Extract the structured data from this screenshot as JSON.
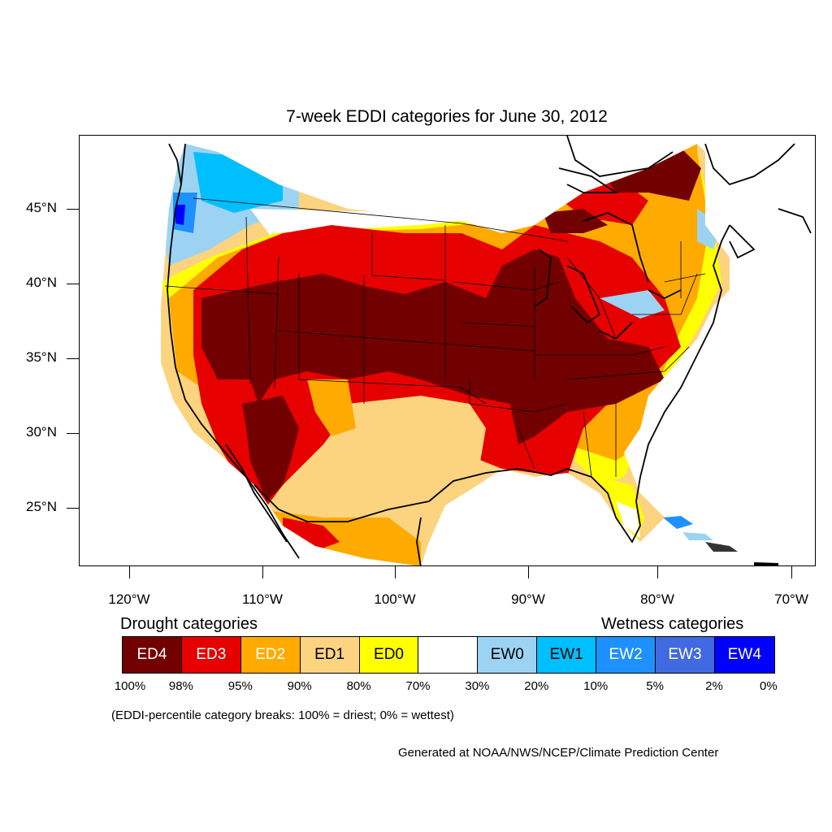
{
  "title": "7-week EDDI categories for June 30, 2012",
  "map": {
    "lat_labels": [
      "45°N",
      "40°N",
      "35°N",
      "30°N",
      "25°N"
    ],
    "lon_labels": [
      "120°W",
      "110°W",
      "100°W",
      "90°W",
      "80°W",
      "70°W"
    ]
  },
  "legend": {
    "drought_heading": "Drought categories",
    "wetness_heading": "Wetness categories",
    "categories": [
      {
        "label": "ED4",
        "color": "#730000",
        "text_color": "#ffffff"
      },
      {
        "label": "ED3",
        "color": "#e60000",
        "text_color": "#ffffff"
      },
      {
        "label": "ED2",
        "color": "#ffaa00",
        "text_color": "#ffffff"
      },
      {
        "label": "ED1",
        "color": "#fcd37f",
        "text_color": "#000000"
      },
      {
        "label": "ED0",
        "color": "#ffff00",
        "text_color": "#000000"
      },
      {
        "label": "",
        "color": "#ffffff",
        "text_color": "#000000"
      },
      {
        "label": "EW0",
        "color": "#9dd3f2",
        "text_color": "#000000"
      },
      {
        "label": "EW1",
        "color": "#00bfff",
        "text_color": "#000000"
      },
      {
        "label": "EW2",
        "color": "#1e90ff",
        "text_color": "#ffffff"
      },
      {
        "label": "EW3",
        "color": "#4169e1",
        "text_color": "#ffffff"
      },
      {
        "label": "EW4",
        "color": "#0000ff",
        "text_color": "#ffffff"
      }
    ],
    "breaks": [
      "100%",
      "98%",
      "95%",
      "90%",
      "80%",
      "70%",
      "30%",
      "20%",
      "10%",
      "5%",
      "2%",
      "0%"
    ]
  },
  "note": "(EDDI-percentile category breaks: 100% = driest; 0% = wettest)",
  "credit": "Generated at NOAA/NWS/NCEP/Climate Prediction Center"
}
